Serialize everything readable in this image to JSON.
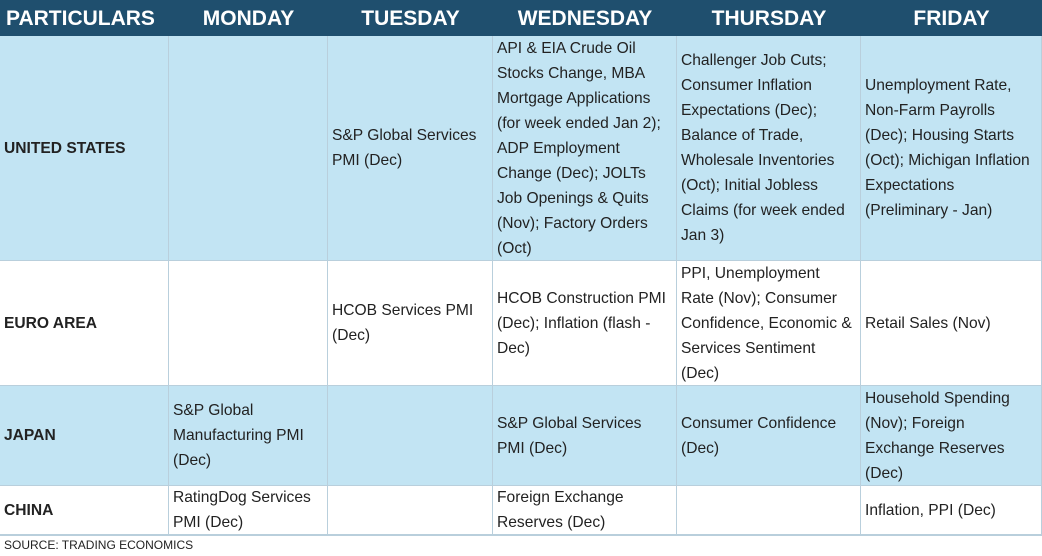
{
  "headers": [
    "PARTICULARS",
    "MONDAY",
    "TUESDAY",
    "WEDNESDAY",
    "THURSDAY",
    "FRIDAY"
  ],
  "rows": [
    {
      "label": "UNITED STATES",
      "cells": [
        "",
        "S&P Global Services PMI (Dec)",
        "API & EIA Crude Oil Stocks Change, MBA Mortgage Applications (for week ended Jan 2); ADP Employment Change (Dec); JOLTs Job Openings & Quits (Nov); Factory Orders (Oct)",
        "Challenger Job Cuts; Consumer Inflation Expectations (Dec); Balance of Trade, Wholesale Inventories (Oct); Initial Jobless Claims (for week ended Jan 3)",
        "Unemployment Rate, Non-Farm Payrolls (Dec); Housing Starts (Oct); Michigan Inflation Expectations (Preliminary - Jan)"
      ]
    },
    {
      "label": "EURO AREA",
      "cells": [
        "",
        "HCOB Services PMI (Dec)",
        "HCOB Construction PMI (Dec); Inflation (flash - Dec)",
        "PPI, Unemployment Rate (Nov); Consumer Confidence, Economic & Services Sentiment (Dec)",
        "Retail Sales (Nov)"
      ]
    },
    {
      "label": "JAPAN",
      "cells": [
        "S&P Global Manufacturing PMI (Dec)",
        "",
        "S&P Global Services PMI (Dec)",
        "Consumer Confidence (Dec)",
        "Household Spending (Nov); Foreign Exchange Reserves (Dec)"
      ]
    },
    {
      "label": "CHINA",
      "cells": [
        "RatingDog Services PMI (Dec)",
        "",
        "Foreign Exchange Reserves (Dec)",
        "",
        "Inflation, PPI (Dec)"
      ]
    }
  ],
  "source": "SOURCE: TRADING ECONOMICS"
}
